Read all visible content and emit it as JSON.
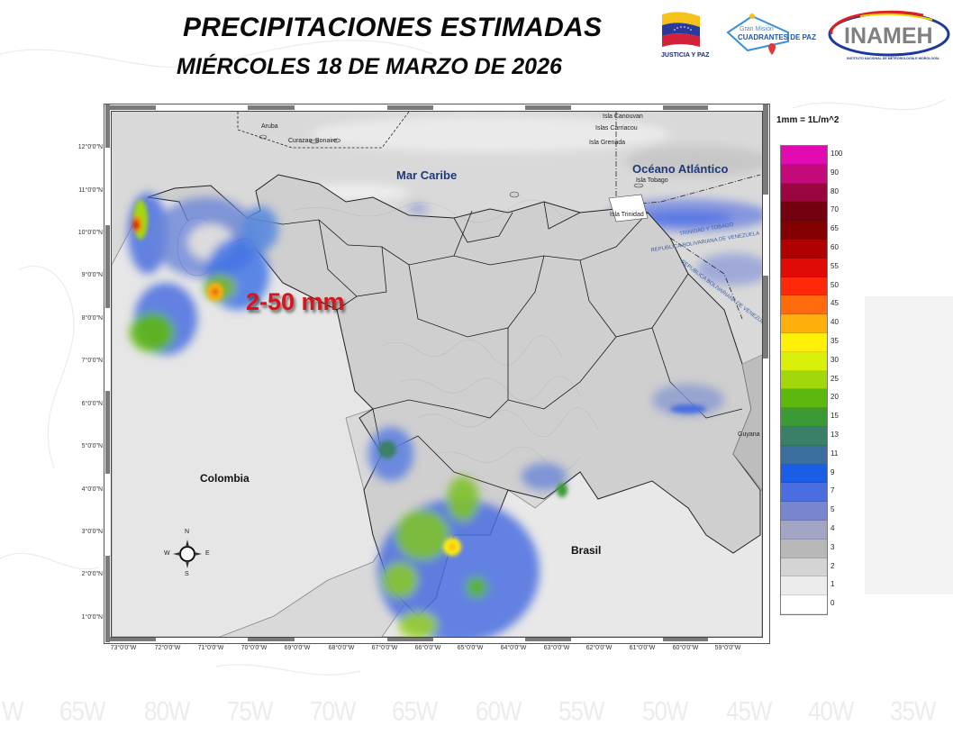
{
  "header": {
    "title": "PRECIPITACIONES ESTIMADAS",
    "subtitle": "MIÉRCOLES 18 DE MARZO DE 2026"
  },
  "logos": {
    "justicia": {
      "label": "JUSTICIA Y PAZ"
    },
    "cuadrantes": {
      "line1": "Gran Misión",
      "line2": "CUADRANTES DE PAZ"
    },
    "inameh": {
      "label": "INAMEH",
      "caption": "INSTITUTO NACIONAL DE METEOROLOGÍA E HIDROLOGÍA"
    }
  },
  "map": {
    "range_annotation": "2-50 mm",
    "oceans": [
      "Mar Caribe",
      "Océano Atlántico"
    ],
    "countries": [
      "Colombia",
      "Brasil",
      "Guyana"
    ],
    "islands": [
      "Aruba",
      "Curazao",
      "Bonaire",
      "Isla Canouvan",
      "Islas Carriacou",
      "Isla Grenada",
      "Isla Tobago",
      "Isla Trinidad"
    ],
    "border_labels": [
      "TRINIDAD Y TOBAGO",
      "REPUBLICA BOLIVARIANA DE VENEZUELA",
      "REPUBLICA BOLIVARIANA DE VENEZUELA"
    ],
    "compass": {
      "n": "N",
      "s": "S",
      "e": "E",
      "w": "W"
    },
    "lat_ticks": [
      "12°0'0\"N",
      "11°0'0\"N",
      "10°0'0\"N",
      "9°0'0\"N",
      "8°0'0\"N",
      "7°0'0\"N",
      "6°0'0\"N",
      "5°0'0\"N",
      "4°0'0\"N",
      "3°0'0\"N",
      "2°0'0\"N",
      "1°0'0\"N"
    ],
    "lon_ticks": [
      "73°0'0\"W",
      "72°0'0\"W",
      "71°0'0\"W",
      "70°0'0\"W",
      "69°0'0\"W",
      "68°0'0\"W",
      "67°0'0\"W",
      "66°0'0\"W",
      "65°0'0\"W",
      "64°0'0\"W",
      "63°0'0\"W",
      "62°0'0\"W",
      "61°0'0\"W",
      "60°0'0\"W",
      "59°0'0\"W"
    ]
  },
  "legend": {
    "title": "1mm = 1L/m^2",
    "items": [
      {
        "label": "100",
        "color": "#e20ab0"
      },
      {
        "label": "90",
        "color": "#c4097a"
      },
      {
        "label": "80",
        "color": "#9a0640"
      },
      {
        "label": "70",
        "color": "#740010"
      },
      {
        "label": "65",
        "color": "#820002"
      },
      {
        "label": "60",
        "color": "#b00000"
      },
      {
        "label": "55",
        "color": "#e10a05"
      },
      {
        "label": "50",
        "color": "#ff2808"
      },
      {
        "label": "45",
        "color": "#ff6a0a"
      },
      {
        "label": "40",
        "color": "#ffb00a"
      },
      {
        "label": "35",
        "color": "#fff00a"
      },
      {
        "label": "30",
        "color": "#d8f00a"
      },
      {
        "label": "25",
        "color": "#a2d80a"
      },
      {
        "label": "20",
        "color": "#5cb80e"
      },
      {
        "label": "15",
        "color": "#3c9a36"
      },
      {
        "label": "13",
        "color": "#3a8068"
      },
      {
        "label": "11",
        "color": "#3a6e9e"
      },
      {
        "label": "9",
        "color": "#1a5ee6"
      },
      {
        "label": "7",
        "color": "#4a6ee0"
      },
      {
        "label": "5",
        "color": "#7886d0"
      },
      {
        "label": "4",
        "color": "#a2a6c4"
      },
      {
        "label": "3",
        "color": "#b8b8b8"
      },
      {
        "label": "2",
        "color": "#d4d4d4"
      },
      {
        "label": "1",
        "color": "#ececec"
      },
      {
        "label": "0",
        "color": "#ffffff"
      }
    ]
  },
  "background": {
    "lon_labels": [
      "W",
      "65W",
      "80W",
      "75W",
      "70W",
      "65W",
      "60W",
      "55W",
      "50W",
      "45W",
      "40W",
      "35W"
    ]
  }
}
